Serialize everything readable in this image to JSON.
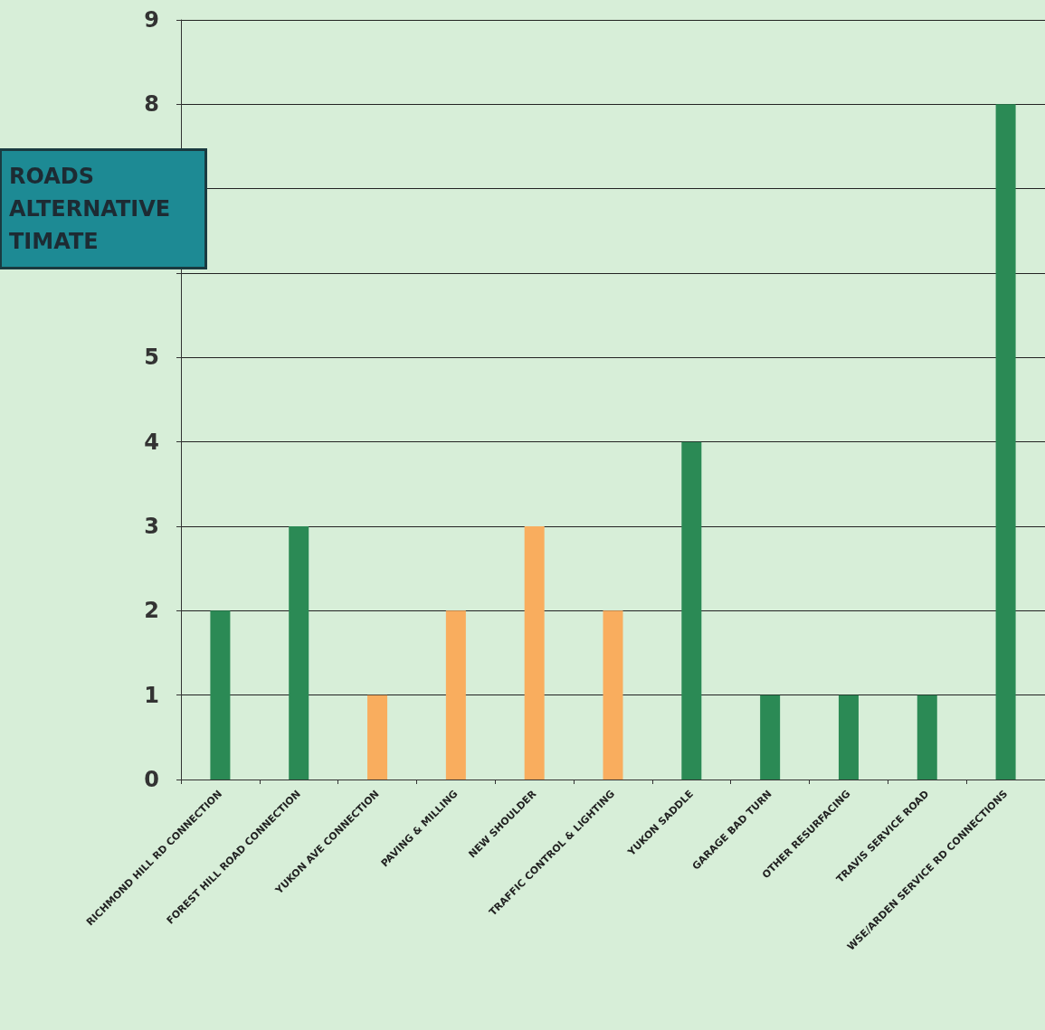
{
  "chart_data": {
    "type": "bar",
    "title": "ROADS\nALTERNATIVE\nTIMATE",
    "categories": [
      "RICHMOND HILL RD CONNECTION",
      "FOREST HILL ROAD CONNECTION",
      "YUKON AVE CONNECTION",
      "PAVING & MILLING",
      "NEW SHOULDER",
      "TRAFFIC CONTROL & LIGHTING",
      "YUKON SADDLE",
      "GARAGE BAD TURN",
      "OTHER RESURFACING",
      "TRAVIS SERVICE ROAD",
      "WSE/ARDEN SERVICE RD CONNECTIONS"
    ],
    "values": [
      2,
      3,
      1,
      2,
      3,
      2,
      4,
      1,
      1,
      1,
      8
    ],
    "colors": [
      "#2b8a55",
      "#2b8a55",
      "#f9ad5e",
      "#f9ad5e",
      "#f9ad5e",
      "#f9ad5e",
      "#2b8a55",
      "#2b8a55",
      "#2b8a55",
      "#2b8a55",
      "#2b8a55"
    ],
    "ylim": [
      0,
      9
    ],
    "yticks": [
      0,
      1,
      2,
      3,
      4,
      5,
      {
        "value": 6,
        "label": null
      },
      {
        "value": 7,
        "label": null
      },
      8,
      9
    ],
    "grid": "y"
  }
}
